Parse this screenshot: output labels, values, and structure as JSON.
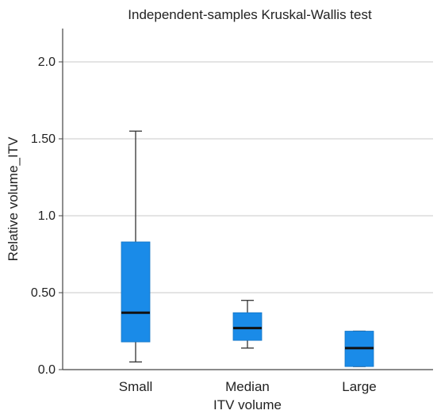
{
  "chart_data": {
    "type": "box",
    "title": "Independent-samples Kruskal-Wallis test",
    "xlabel": "ITV volume",
    "ylabel": "Relative volume_ITV",
    "ylim": [
      0,
      2.2
    ],
    "yticks": [
      {
        "value": 0.0,
        "label": "0.0"
      },
      {
        "value": 0.5,
        "label": "0.50"
      },
      {
        "value": 1.0,
        "label": "1.0"
      },
      {
        "value": 1.5,
        "label": "1.50"
      },
      {
        "value": 2.0,
        "label": "2.0"
      }
    ],
    "grid": true,
    "box_color": "#1a8be8",
    "median_color": "#111111",
    "whisker_color": "#333333",
    "categories": [
      "Small",
      "Median",
      "Large"
    ],
    "boxes": [
      {
        "category": "Small",
        "min": 0.05,
        "q1": 0.18,
        "median": 0.37,
        "q3": 0.83,
        "max": 1.55
      },
      {
        "category": "Median",
        "min": 0.14,
        "q1": 0.19,
        "median": 0.27,
        "q3": 0.37,
        "max": 0.45
      },
      {
        "category": "Large",
        "min": 0.02,
        "q1": 0.02,
        "median": 0.14,
        "q3": 0.25,
        "max": 0.25
      }
    ]
  }
}
